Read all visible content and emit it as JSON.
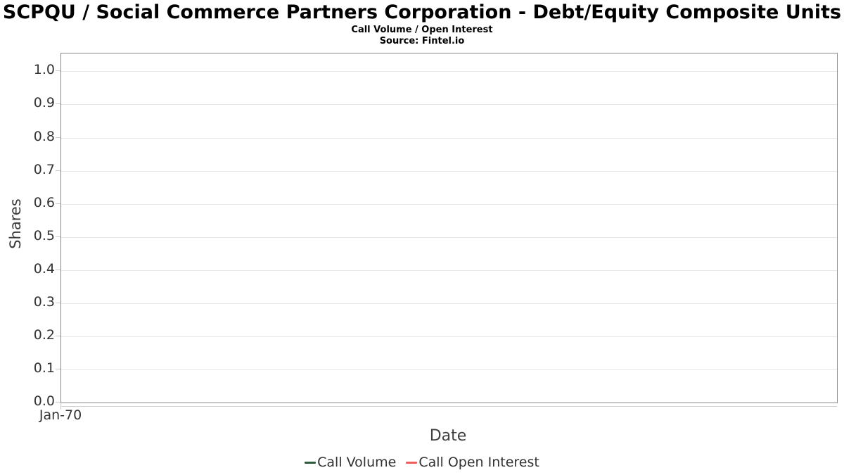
{
  "chart_data": {
    "type": "line",
    "title": "SCPQU / Social Commerce Partners Corporation - Debt/Equity Composite Units",
    "subtitle": "Call Volume / Open Interest",
    "source": "Source: Fintel.io",
    "xlabel": "Date",
    "ylabel": "Shares",
    "x_tick_labels": [
      "Jan-70"
    ],
    "y_ticks": [
      0.0,
      0.1,
      0.2,
      0.3,
      0.4,
      0.5,
      0.6,
      0.7,
      0.8,
      0.9,
      1.0
    ],
    "y_tick_decimals": 1,
    "ylim": [
      0,
      1.054
    ],
    "grid": true,
    "legend_position": "bottom",
    "series": [
      {
        "name": "Call Volume",
        "color": "#2d5c3c",
        "values": []
      },
      {
        "name": "Call Open Interest",
        "color": "#f45b5b",
        "values": []
      }
    ]
  }
}
